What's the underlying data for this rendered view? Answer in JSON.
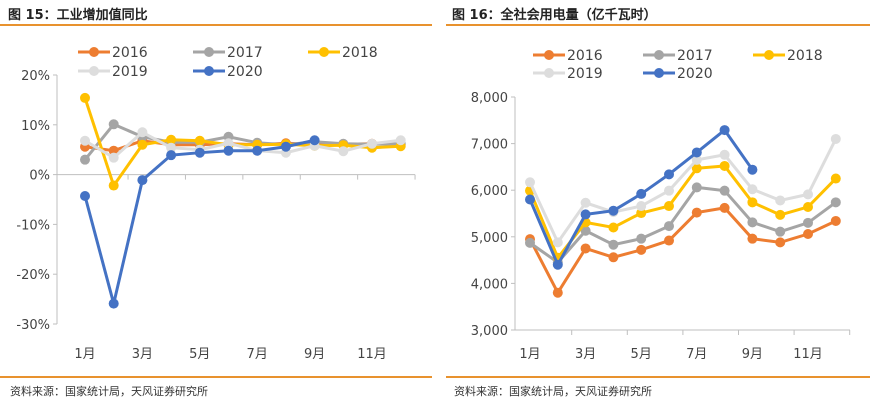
{
  "chart_data": [
    {
      "type": "line",
      "title": "图 15：工业增加值同比",
      "source": "资料来源：国家统计局，天风证券研究所",
      "categories": [
        "1月",
        "2月",
        "3月",
        "4月",
        "5月",
        "6月",
        "7月",
        "8月",
        "9月",
        "10月",
        "11月",
        "12月"
      ],
      "xticklabels": [
        "1月",
        "3月",
        "5月",
        "7月",
        "9月",
        "11月"
      ],
      "ylim": [
        -30,
        20
      ],
      "yticks": [
        20,
        10,
        0,
        -10,
        -20,
        -30
      ],
      "yformat": "%",
      "legend": "top",
      "grid": false,
      "series": [
        {
          "name": "2016",
          "color": "#ed7d31",
          "values": [
            5.6,
            4.8,
            6.8,
            6.0,
            6.0,
            6.2,
            6.0,
            6.3,
            6.1,
            6.1,
            6.2,
            6.0
          ]
        },
        {
          "name": "2017",
          "color": "#a5a5a5",
          "values": [
            3.0,
            10.1,
            7.6,
            6.5,
            6.5,
            7.6,
            6.4,
            6.0,
            6.6,
            6.2,
            6.1,
            6.2
          ]
        },
        {
          "name": "2018",
          "color": "#ffc000",
          "values": [
            15.4,
            -2.2,
            6.0,
            7.0,
            6.8,
            6.0,
            6.0,
            6.1,
            5.8,
            5.9,
            5.4,
            5.7
          ]
        },
        {
          "name": "2019",
          "color": "#dddddd",
          "values": [
            6.8,
            3.4,
            8.5,
            5.4,
            5.0,
            6.3,
            4.8,
            4.4,
            5.8,
            4.7,
            6.2,
            6.9
          ]
        },
        {
          "name": "2020",
          "color": "#4472c4",
          "values": [
            -4.3,
            -25.9,
            -1.1,
            3.9,
            4.4,
            4.8,
            4.8,
            5.6,
            6.9,
            null,
            null,
            null
          ]
        }
      ]
    },
    {
      "type": "line",
      "title": "图 16：全社会用电量（亿千瓦时）",
      "source": "资料来源：国家统计局，天风证券研究所",
      "categories": [
        "1月",
        "2月",
        "3月",
        "4月",
        "5月",
        "6月",
        "7月",
        "8月",
        "9月",
        "10月",
        "11月",
        "12月"
      ],
      "xticklabels": [
        "1月",
        "3月",
        "5月",
        "7月",
        "9月",
        "11月"
      ],
      "ylim": [
        3000,
        8000
      ],
      "yticks": [
        8000,
        7000,
        6000,
        5000,
        4000,
        3000
      ],
      "yformat": ",",
      "legend": "top",
      "grid": false,
      "series": [
        {
          "name": "2016",
          "color": "#ed7d31",
          "values": [
            4950,
            3800,
            4750,
            4560,
            4720,
            4920,
            5520,
            5620,
            4960,
            4880,
            5060,
            5340
          ]
        },
        {
          "name": "2017",
          "color": "#a5a5a5",
          "values": [
            4870,
            4450,
            5130,
            4830,
            4960,
            5230,
            6060,
            5990,
            5310,
            5110,
            5300,
            5740
          ]
        },
        {
          "name": "2018",
          "color": "#ffc000",
          "values": [
            5990,
            4550,
            5310,
            5200,
            5510,
            5660,
            6470,
            6520,
            5740,
            5470,
            5640,
            6250
          ]
        },
        {
          "name": "2019",
          "color": "#dddddd",
          "values": [
            6170,
            4880,
            5730,
            5530,
            5660,
            5990,
            6650,
            6760,
            6020,
            5780,
            5910,
            7100
          ]
        },
        {
          "name": "2020",
          "color": "#4472c4",
          "values": [
            5800,
            4400,
            5480,
            5560,
            5920,
            6340,
            6810,
            7290,
            6440,
            null,
            null,
            null
          ]
        }
      ]
    }
  ]
}
